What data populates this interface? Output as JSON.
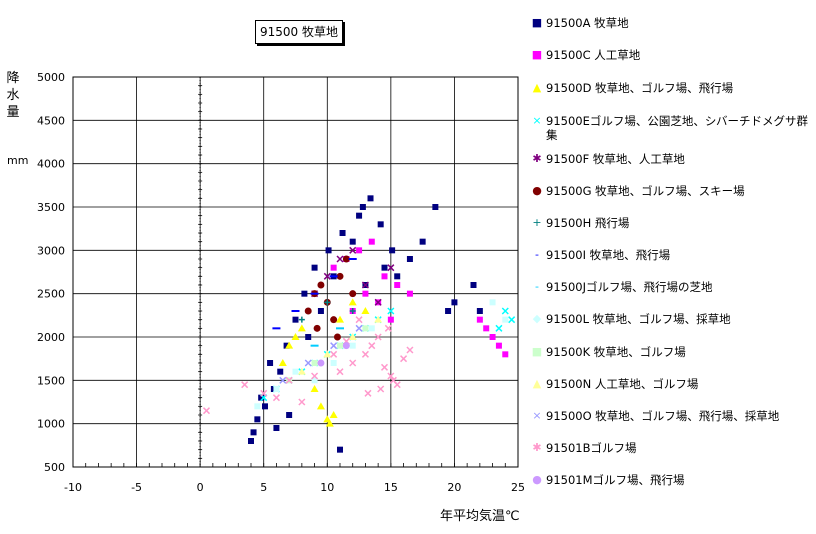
{
  "chart_data": {
    "type": "scatter",
    "title": "91500 牧草地",
    "xlabel": "年平均気温℃",
    "ylabel": "降水量",
    "yunit": "mm",
    "xlim": [
      -10,
      25
    ],
    "ylim": [
      500,
      5000
    ],
    "xticks": [
      "-10",
      "-5",
      "0",
      "5",
      "10",
      "15",
      "20",
      "25"
    ],
    "yticks": [
      "500",
      "1000",
      "1500",
      "2000",
      "2500",
      "3000",
      "3500",
      "4000",
      "4500",
      "5000"
    ],
    "grid": true,
    "legend_position": "right",
    "series": [
      {
        "name": "91500A 牧草地",
        "marker": "■",
        "color": "#000080",
        "x": [
          4.2,
          4.5,
          5.1,
          5.8,
          6.3,
          4.0,
          4.8,
          5.5,
          6.8,
          7.5,
          8.2,
          9.0,
          10.1,
          11.2,
          12.5,
          13.4,
          14.2,
          15.1,
          8.5,
          9.5,
          10.5,
          11.5,
          12.0,
          13.0,
          14.5,
          15.5,
          16.5,
          17.5,
          18.5,
          20.0,
          21.5,
          22.0,
          6.0,
          7.0,
          11.0,
          12.8,
          19.5
        ],
        "y": [
          900,
          1050,
          1200,
          1400,
          1600,
          800,
          1300,
          1700,
          1900,
          2200,
          2500,
          2800,
          3000,
          3200,
          3400,
          3600,
          3300,
          3000,
          2000,
          2300,
          2700,
          2900,
          3100,
          2600,
          2800,
          2700,
          2900,
          3100,
          3500,
          2400,
          2600,
          2300,
          950,
          1100,
          700,
          3500,
          2300
        ]
      },
      {
        "name": "91500C 人工草地",
        "marker": "■",
        "color": "#FF00FF",
        "x": [
          10.5,
          11.5,
          12.5,
          13.5,
          14.5,
          15.5,
          16.5,
          22.0,
          22.5,
          23.0,
          23.5,
          24.0,
          12.0,
          13.0,
          14.0,
          15.0
        ],
        "y": [
          2800,
          2900,
          3000,
          3100,
          2700,
          2600,
          2500,
          2200,
          2100,
          2000,
          1900,
          1800,
          2300,
          2500,
          2400,
          2200
        ]
      },
      {
        "name": "91500D 牧草地、ゴルフ場、飛行場",
        "marker": "▲",
        "color": "#FFFF00",
        "x": [
          6.5,
          7.0,
          7.5,
          8.0,
          9.0,
          9.5,
          10.0,
          10.2,
          10.5,
          11.0,
          12.0,
          13.0
        ],
        "y": [
          1700,
          1900,
          2000,
          2100,
          1400,
          1200,
          1050,
          1000,
          1100,
          2200,
          2400,
          2300
        ]
      },
      {
        "name": "91500Eゴルフ場、公園芝地、シバーチドメグサ群集",
        "marker": "×",
        "color": "#00FFFF",
        "x": [
          5.0,
          6.0,
          7.0,
          8.0,
          9.0,
          10.0,
          11.0,
          12.0,
          13.0,
          14.0,
          15.0,
          24.0,
          24.5,
          23.5
        ],
        "y": [
          1300,
          1400,
          1500,
          1600,
          1700,
          1800,
          1900,
          2000,
          2100,
          2200,
          2300,
          2300,
          2200,
          2100
        ]
      },
      {
        "name": "91500F 牧草地、人工草地",
        "marker": "✱",
        "color": "#800080",
        "x": [
          9.0,
          10.0,
          11.0,
          12.0,
          13.0,
          14.0,
          15.0
        ],
        "y": [
          2500,
          2700,
          2900,
          3000,
          2600,
          2400,
          2800
        ]
      },
      {
        "name": "91500G 牧草地、ゴルフ場、スキー場",
        "marker": "●",
        "color": "#800000",
        "x": [
          8.5,
          9.0,
          9.5,
          10.0,
          10.5,
          11.0,
          11.5,
          12.0,
          9.2,
          10.8
        ],
        "y": [
          2300,
          2500,
          2600,
          2400,
          2200,
          2700,
          2900,
          2500,
          2100,
          2000
        ]
      },
      {
        "name": "91500H 飛行場",
        "marker": "+",
        "color": "#008080",
        "x": [
          8.0,
          10.0,
          12.0
        ],
        "y": [
          2200,
          2400,
          2300
        ]
      },
      {
        "name": "91500I 牧草地、飛行場",
        "marker": "-",
        "color": "#0000FF",
        "x": [
          6.0,
          7.5,
          9.0,
          10.5,
          12.0
        ],
        "y": [
          2100,
          2300,
          2500,
          2700,
          2900
        ]
      },
      {
        "name": "91500Jゴルフ場、飛行場の芝地",
        "marker": "-",
        "color": "#00CCFF",
        "x": [
          9.0,
          11.0
        ],
        "y": [
          1900,
          2100
        ]
      },
      {
        "name": "91500L 牧草地、ゴルフ場、採草地",
        "marker": "◆",
        "color": "#CCFFFF",
        "x": [
          4.5,
          6.0,
          7.5,
          9.0,
          10.5,
          12.0,
          13.5,
          23.0,
          24.0
        ],
        "y": [
          1200,
          1400,
          1600,
          1500,
          1700,
          1900,
          2100,
          2400,
          2200
        ]
      },
      {
        "name": "91500K 牧草地、ゴルフ場",
        "marker": "■",
        "color": "#CCFFCC",
        "x": [
          7.0,
          9.0,
          11.0,
          13.0
        ],
        "y": [
          1500,
          1700,
          1900,
          2100
        ]
      },
      {
        "name": "91500N 人工草地、ゴルフ場",
        "marker": "▲",
        "color": "#FFFF99",
        "x": [
          8.0,
          10.0,
          12.0,
          14.0
        ],
        "y": [
          1600,
          1800,
          2000,
          2200
        ]
      },
      {
        "name": "91500O 牧草地、ゴルフ場、飛行場、採草地",
        "marker": "×",
        "color": "#9999FF",
        "x": [
          6.5,
          8.5,
          10.5,
          12.5
        ],
        "y": [
          1500,
          1700,
          1900,
          2100
        ]
      },
      {
        "name": "91501Bゴルフ場",
        "marker": "✱",
        "color": "#FF99CC",
        "x": [
          0.5,
          3.5,
          5.0,
          7.0,
          9.0,
          11.0,
          12.0,
          13.0,
          13.5,
          14.0,
          14.5,
          15.0,
          15.5,
          16.0,
          16.5,
          13.2,
          14.2,
          15.2,
          14.8,
          12.5,
          11.5,
          10.5,
          8.0,
          6.0
        ],
        "y": [
          1150,
          1450,
          1350,
          1500,
          1550,
          1600,
          1700,
          1800,
          1900,
          2000,
          1650,
          1550,
          1450,
          1750,
          1850,
          1350,
          1400,
          1500,
          2100,
          2200,
          1950,
          1800,
          1250,
          1300
        ]
      },
      {
        "name": "91501Mゴルフ場、飛行場",
        "marker": "●",
        "color": "#CC99FF",
        "x": [
          9.5,
          11.5
        ],
        "y": [
          1700,
          1900
        ]
      }
    ]
  }
}
